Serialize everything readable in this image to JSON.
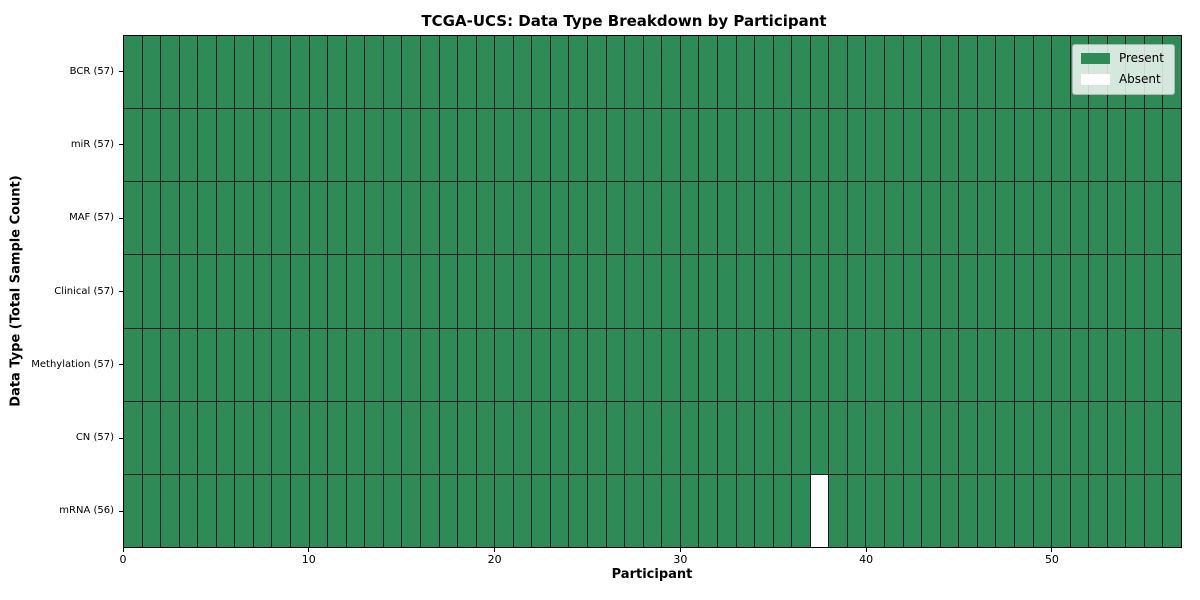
{
  "chart_data": {
    "type": "heatmap",
    "title": "TCGA-UCS: Data Type Breakdown by Participant",
    "xlabel": "Participant",
    "ylabel": "Data Type (Total Sample Count)",
    "n_participants": 57,
    "x_range": [
      0,
      57
    ],
    "x_ticks": [
      0,
      10,
      20,
      30,
      40,
      50
    ],
    "rows": [
      {
        "label": "BCR (57)",
        "data_type": "BCR",
        "sample_count": 57,
        "absent_participants": []
      },
      {
        "label": "miR (57)",
        "data_type": "miR",
        "sample_count": 57,
        "absent_participants": []
      },
      {
        "label": "MAF (57)",
        "data_type": "MAF",
        "sample_count": 57,
        "absent_participants": []
      },
      {
        "label": "Clinical (57)",
        "data_type": "Clinical",
        "sample_count": 57,
        "absent_participants": []
      },
      {
        "label": "Methylation (57)",
        "data_type": "Methylation",
        "sample_count": 57,
        "absent_participants": []
      },
      {
        "label": "CN (57)",
        "data_type": "CN",
        "sample_count": 57,
        "absent_participants": []
      },
      {
        "label": "mRNA (56)",
        "data_type": "mRNA",
        "sample_count": 56,
        "absent_participants": [
          37
        ]
      }
    ],
    "legend": {
      "position": "upper right",
      "entries": [
        {
          "label": "Present",
          "color": "#2e8b57"
        },
        {
          "label": "Absent",
          "color": "#ffffff"
        }
      ]
    },
    "colors": {
      "present": "#2e8b57",
      "absent": "#ffffff",
      "gridline": "#1f1f1f",
      "axis_border": "#000000",
      "background": "#ffffff"
    }
  }
}
